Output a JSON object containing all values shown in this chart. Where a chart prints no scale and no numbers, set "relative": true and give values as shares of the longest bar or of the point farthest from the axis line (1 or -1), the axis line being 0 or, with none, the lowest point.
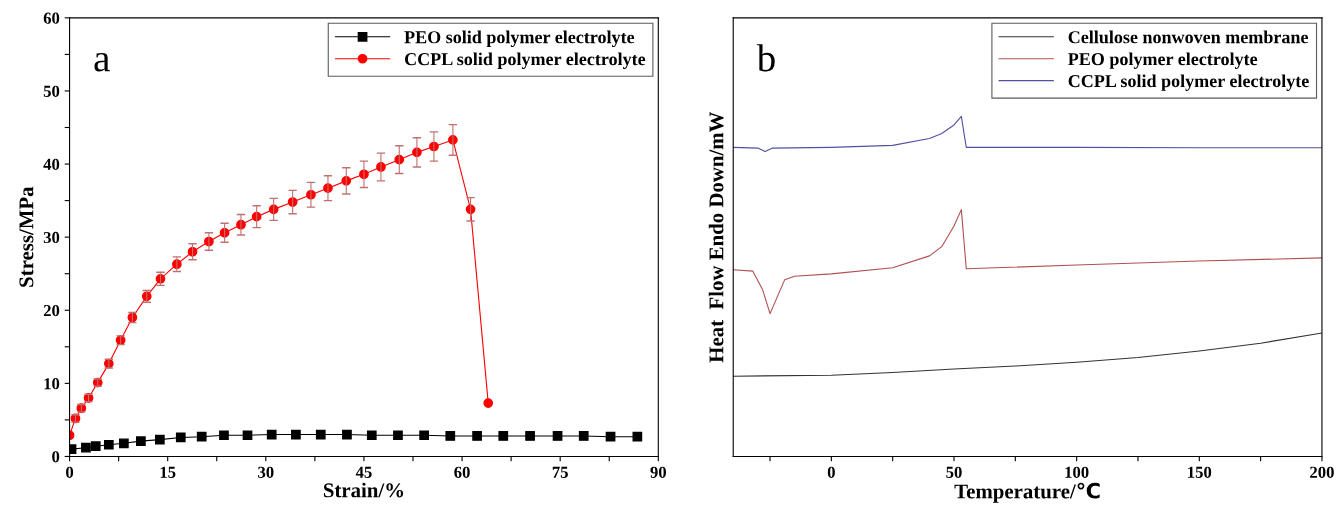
{
  "chart_data": [
    {
      "type": "line",
      "annotations": [
        "a"
      ],
      "xlabel": "Strain/%",
      "ylabel": "Stress/MPa",
      "xlim": [
        0,
        90
      ],
      "ylim": [
        0,
        60
      ],
      "xticks": [
        0,
        {
          "value": 7.5,
          "label": null
        },
        15,
        {
          "value": 22.5,
          "label": null
        },
        30,
        {
          "value": 37.5,
          "label": null
        },
        45,
        {
          "value": 52.5,
          "label": null
        },
        60,
        {
          "value": 67.5,
          "label": null
        },
        75,
        {
          "value": 82.5,
          "label": null
        },
        90
      ],
      "yticks": [
        0,
        {
          "value": 5,
          "label": null
        },
        10,
        {
          "value": 15,
          "label": null
        },
        20,
        {
          "value": 25,
          "label": null
        },
        30,
        {
          "value": 35,
          "label": null
        },
        40,
        {
          "value": 45,
          "label": null
        },
        50,
        {
          "value": 55,
          "label": null
        },
        60
      ],
      "legend": "top right",
      "grid": false,
      "series": [
        {
          "name": "PEO solid polymer electrolyte",
          "color": "#000000",
          "marker": "square",
          "x": [
            0.3,
            2.5,
            4.0,
            6.0,
            8.3,
            10.9,
            13.8,
            17.0,
            20.2,
            23.6,
            27.2,
            30.9,
            34.6,
            38.4,
            42.4,
            46.2,
            50.2,
            54.2,
            58.2,
            62.3,
            66.3,
            70.4,
            74.6,
            78.6,
            82.7,
            86.8
          ],
          "values": [
            1.0,
            1.2,
            1.4,
            1.6,
            1.8,
            2.1,
            2.3,
            2.6,
            2.7,
            2.9,
            2.9,
            3.0,
            3.0,
            3.0,
            3.0,
            2.9,
            2.9,
            2.9,
            2.8,
            2.8,
            2.8,
            2.8,
            2.8,
            2.8,
            2.7,
            2.7
          ]
        },
        {
          "name": "CCPL solid polymer electrolyte",
          "color": "#ff0000",
          "marker": "circle",
          "x": [
            0,
            0.9,
            1.8,
            2.9,
            4.3,
            6.0,
            7.8,
            9.6,
            11.8,
            13.9,
            16.4,
            18.8,
            21.3,
            23.7,
            26.2,
            28.6,
            31.2,
            34.1,
            36.9,
            39.5,
            42.3,
            45.0,
            47.6,
            50.4,
            53.1,
            55.7,
            58.6,
            61.3,
            64.0
          ],
          "values": [
            2.9,
            5.2,
            6.6,
            8.0,
            10.1,
            12.7,
            15.9,
            19.0,
            21.9,
            24.3,
            26.3,
            28.0,
            29.4,
            30.6,
            31.7,
            32.8,
            33.8,
            34.8,
            35.8,
            36.7,
            37.7,
            38.6,
            39.6,
            40.6,
            41.6,
            42.4,
            43.3,
            33.8,
            7.3
          ],
          "errors": [
            null,
            0.5,
            0.5,
            0.5,
            0.5,
            0.6,
            0.6,
            0.7,
            0.8,
            0.9,
            1.0,
            1.1,
            1.2,
            1.3,
            1.4,
            1.5,
            1.5,
            1.6,
            1.7,
            1.7,
            1.8,
            1.8,
            1.9,
            1.9,
            2.0,
            2.0,
            2.1,
            1.6,
            null
          ]
        }
      ]
    },
    {
      "type": "line",
      "annotations": [
        "b"
      ],
      "xlabel": "Temperature/℃",
      "ylabel": "Heat  Flow Endo Down/mW",
      "relative": true,
      "xlim": [
        -40,
        200
      ],
      "xticks": [
        {
          "value": -25,
          "label": null
        },
        0,
        {
          "value": 25,
          "label": null
        },
        50,
        {
          "value": 75,
          "label": null
        },
        100,
        {
          "value": 125,
          "label": null
        },
        150,
        {
          "value": 175,
          "label": null
        },
        200
      ],
      "tick_labels": "x",
      "legend": "top right",
      "grid": false,
      "series": [
        {
          "name": "Cellulose nonwoven membrane",
          "color": "#333333",
          "x": [
            -40,
            0,
            25,
            50,
            75,
            100,
            125,
            150,
            175,
            200
          ],
          "values": [
            0.236,
            0.239,
            0.247,
            0.257,
            0.266,
            0.277,
            0.291,
            0.31,
            0.333,
            0.363
          ]
        },
        {
          "name": "PEO polymer electrolyte",
          "color": "#b05050",
          "x": [
            -40,
            -32,
            -28,
            -25,
            -22,
            -19,
            -15,
            0,
            25,
            40,
            45,
            50,
            53,
            55,
            100,
            150,
            200
          ],
          "values": [
            0.549,
            0.545,
            0.49,
            0.42,
            0.47,
            0.52,
            0.53,
            0.537,
            0.555,
            0.59,
            0.617,
            0.678,
            0.726,
            0.552,
            0.563,
            0.575,
            0.584
          ]
        },
        {
          "name": "CCPL solid polymer electrolyte",
          "color": "#5050a0",
          "x": [
            -40,
            -30,
            -27,
            -24,
            0,
            25,
            40,
            45,
            50,
            53,
            55,
            100,
            150,
            200
          ],
          "values": [
            0.909,
            0.907,
            0.897,
            0.907,
            0.909,
            0.915,
            0.935,
            0.95,
            0.975,
            1.0,
            0.909,
            0.909,
            0.908,
            0.908
          ]
        }
      ]
    }
  ]
}
